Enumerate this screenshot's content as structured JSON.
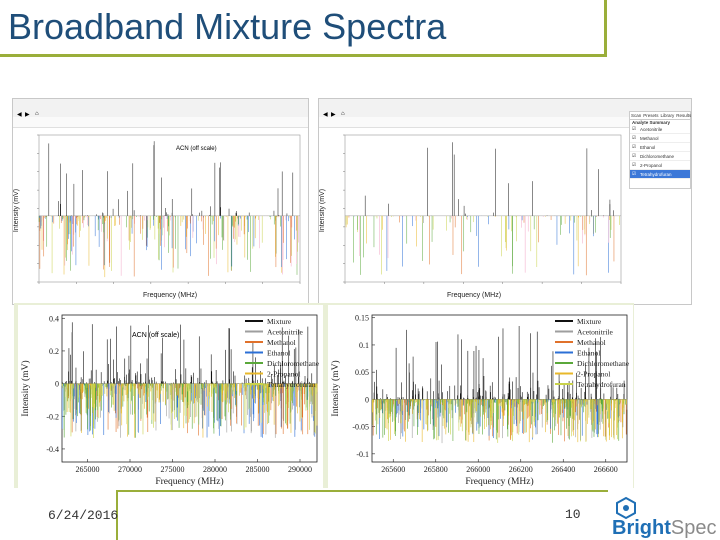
{
  "slide": {
    "title": "Broadband Mixture Spectra",
    "date": "6/24/2016",
    "page_number": "10",
    "logo": {
      "part1": "Bright",
      "part2": "Spec"
    },
    "colors": {
      "title": "#1f4e79",
      "accent_green": "#9aae3a",
      "logo_blue": "#1f6fb5",
      "logo_gray": "#8a8a8a"
    }
  },
  "screenshots": {
    "left": {
      "annotation": "ACN (off scale)",
      "xlabel": "Frequency (MHz)",
      "ylabel": "Intensity (mV)"
    },
    "right": {
      "xlabel": "Frequency (MHz)",
      "ylabel": "Intensity (mV)",
      "side_panel": {
        "tabs": [
          "Scan",
          "Presets",
          "Library",
          "Results"
        ],
        "header": "Analyte Summary",
        "rows": [
          "Acetonitrile",
          "Methanol",
          "Ethanol",
          "Dichloromethane",
          "2-Propanol",
          "Tetrahydrofuran"
        ]
      }
    }
  },
  "chart_data": [
    {
      "type": "line",
      "annotation": "ACN (off scale)",
      "xlabel": "Frequency (MHz)",
      "ylabel": "Intensity (mV)",
      "x_ticks": [
        "265000",
        "270000",
        "275000",
        "280000",
        "285000",
        "290000"
      ],
      "y_ticks": [
        "0.4",
        "0.2",
        "0",
        "-0.2",
        "-0.4"
      ],
      "xlim": [
        262000,
        292000
      ],
      "ylim": [
        -0.48,
        0.42
      ],
      "grid": false,
      "legend_position": "top-right",
      "series": [
        {
          "name": "Mixture",
          "color": "#111111"
        },
        {
          "name": "Acetonitrile",
          "color": "#9e9e9e"
        },
        {
          "name": "Methanol",
          "color": "#e0712b"
        },
        {
          "name": "Ethanol",
          "color": "#2b6fd6"
        },
        {
          "name": "Dichloromethane",
          "color": "#5aa83a"
        },
        {
          "name": "2-Propanol",
          "color": "#e8b82a"
        },
        {
          "name": "Tetrahydrofuran",
          "color": "#c9d24a"
        }
      ]
    },
    {
      "type": "line",
      "xlabel": "Frequency (MHz)",
      "ylabel": "Intensity (mV)",
      "x_ticks": [
        "265600",
        "265800",
        "266000",
        "266200",
        "266400",
        "266600"
      ],
      "y_ticks": [
        "0.15",
        "0.1",
        "0.05",
        "0",
        "-0.05",
        "-0.1"
      ],
      "xlim": [
        265500,
        266700
      ],
      "ylim": [
        -0.115,
        0.155
      ],
      "grid": false,
      "legend_position": "top-right",
      "series": [
        {
          "name": "Mixture",
          "color": "#111111"
        },
        {
          "name": "Acetonitrile",
          "color": "#9e9e9e"
        },
        {
          "name": "Methanol",
          "color": "#e0712b"
        },
        {
          "name": "Ethanol",
          "color": "#2b6fd6"
        },
        {
          "name": "Dichloromethane",
          "color": "#5aa83a"
        },
        {
          "name": "2-Propanol",
          "color": "#e8b82a"
        },
        {
          "name": "Tetrahydrofuran",
          "color": "#c9d24a"
        }
      ]
    }
  ]
}
